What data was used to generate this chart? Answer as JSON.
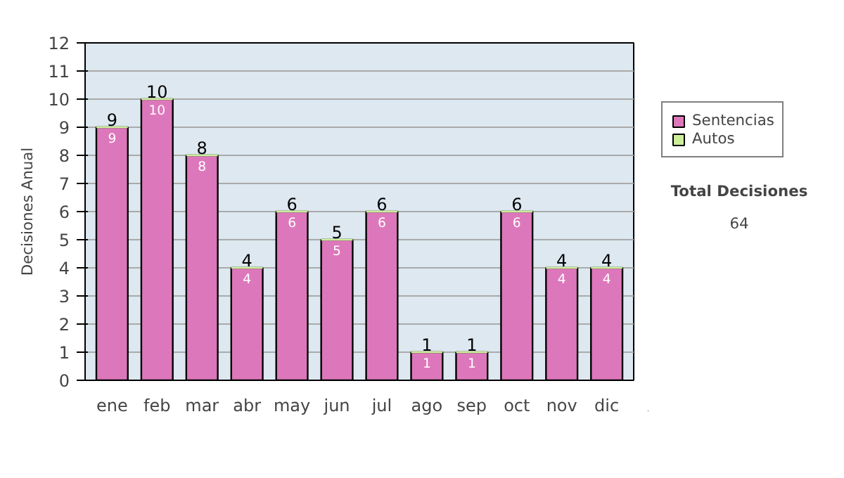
{
  "chart_data": {
    "type": "bar",
    "stacked": true,
    "ylabel": "Decisiones Anual",
    "categories": [
      "ene",
      "feb",
      "mar",
      "abr",
      "may",
      "jun",
      "jul",
      "ago",
      "sep",
      "oct",
      "nov",
      "dic"
    ],
    "series": [
      {
        "name": "Sentencias",
        "color": "#dd77bb",
        "values": [
          9,
          10,
          8,
          4,
          6,
          5,
          6,
          1,
          1,
          6,
          4,
          4
        ],
        "value_labels": [
          "9",
          "10",
          "8",
          "4",
          "6",
          "5",
          "6",
          "1",
          "1",
          "6",
          "4",
          "4"
        ]
      },
      {
        "name": "Autos",
        "color": "#ccee99",
        "values": [
          0,
          0,
          0,
          0,
          0,
          0,
          0,
          0,
          0,
          0,
          0,
          0
        ]
      }
    ],
    "totals": [
      "9",
      "10",
      "8",
      "4",
      "6",
      "5",
      "6",
      "1",
      "1",
      "6",
      "4",
      "4"
    ],
    "ylim": [
      0,
      12
    ],
    "yticks": [
      0,
      1,
      2,
      3,
      4,
      5,
      6,
      7,
      8,
      9,
      10,
      11,
      12
    ],
    "grid": "y",
    "legend": "right",
    "annotations": [
      "Total Decisiones",
      "64"
    ]
  }
}
